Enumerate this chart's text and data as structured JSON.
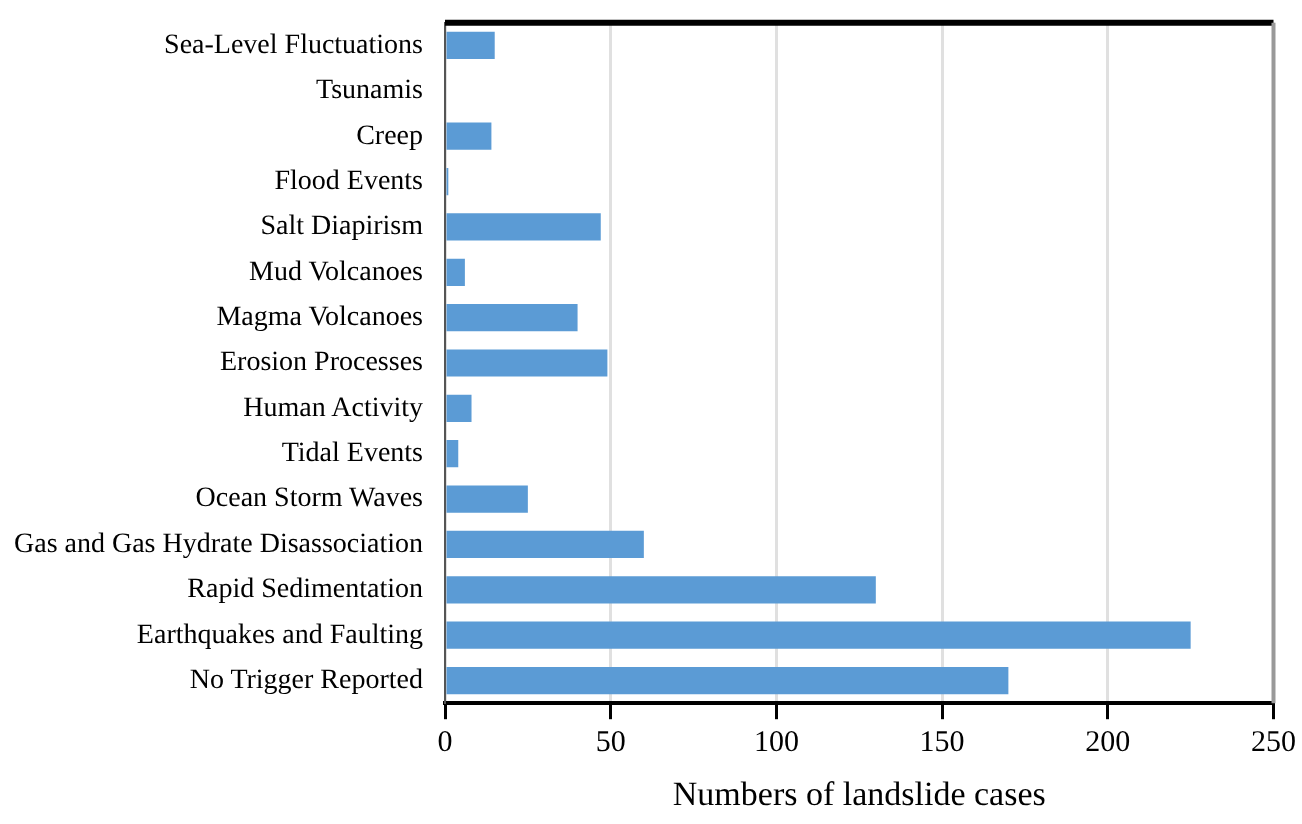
{
  "chart_data": {
    "type": "bar",
    "orientation": "horizontal",
    "xlabel": "Numbers of landslide cases",
    "categories": [
      "Sea-Level Fluctuations",
      "Tsunamis",
      "Creep",
      "Flood Events",
      "Salt Diapirism",
      "Mud Volcanoes",
      "Magma Volcanoes",
      "Erosion Processes",
      "Human Activity",
      "Tidal Events",
      "Ocean Storm Waves",
      "Gas and Gas Hydrate Disassociation",
      "Rapid Sedimentation",
      "Earthquakes and Faulting",
      "No Trigger Reported"
    ],
    "values": [
      15,
      0,
      14,
      1,
      47,
      6,
      40,
      49,
      8,
      4,
      25,
      60,
      130,
      225,
      170
    ],
    "color": "#5b9bd5",
    "xlim": [
      0,
      250
    ],
    "xticks": [
      0,
      50,
      100,
      150,
      200,
      250
    ],
    "grid": "x",
    "legend": false
  }
}
